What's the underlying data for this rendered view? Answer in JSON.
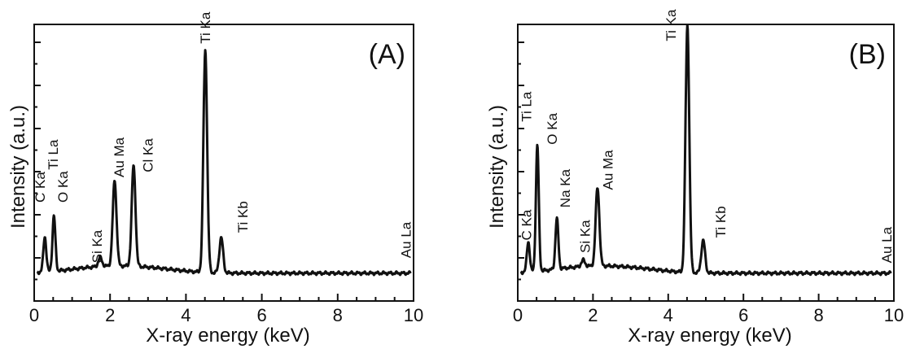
{
  "chart_data": [
    {
      "type": "line",
      "panel_label": "(A)",
      "xlabel": "X-ray energy (keV)",
      "ylabel": "Intensity (a.u.)",
      "xlim": [
        0,
        10
      ],
      "ylim": [
        0,
        1.0
      ],
      "y_tick_labels": false,
      "x_ticks": [
        "0",
        "2",
        "4",
        "6",
        "8",
        "10"
      ],
      "baseline": 0.02,
      "peaks": [
        {
          "label": "C Ka",
          "energy": 0.28,
          "height": 0.14
        },
        {
          "label": "O Ka",
          "energy": 0.52,
          "height": 0.22
        },
        {
          "label": "Ti La",
          "energy": 0.45,
          "height": 0.0
        },
        {
          "label": "Si Ka",
          "energy": 1.74,
          "height": 0.035
        },
        {
          "label": "Au Ma",
          "energy": 2.12,
          "height": 0.34
        },
        {
          "label": "Cl Ka",
          "energy": 2.62,
          "height": 0.4
        },
        {
          "label": "Ti Ka",
          "energy": 4.51,
          "height": 0.88
        },
        {
          "label": "Ti Kb",
          "energy": 4.93,
          "height": 0.14
        },
        {
          "label": "Au La",
          "energy": 9.71,
          "height": 0.0
        }
      ],
      "peak_labels": [
        {
          "text": "C Ka",
          "energy": 0.28,
          "y": 0.3
        },
        {
          "text": "Ti La",
          "energy": 0.62,
          "y": 0.43
        },
        {
          "text": "O Ka",
          "energy": 0.88,
          "y": 0.3
        },
        {
          "text": "Si Ka",
          "energy": 1.78,
          "y": 0.06
        },
        {
          "text": "Au Ma",
          "energy": 2.36,
          "y": 0.4
        },
        {
          "text": "Cl Ka",
          "energy": 3.12,
          "y": 0.42
        },
        {
          "text": "Ti Ka",
          "energy": 4.64,
          "y": 0.93
        },
        {
          "text": "Ti Kb",
          "energy": 5.62,
          "y": 0.18
        },
        {
          "text": "Au La",
          "energy": 9.92,
          "y": 0.08
        }
      ]
    },
    {
      "type": "line",
      "panel_label": "(B)",
      "xlabel": "X-ray energy (keV)",
      "ylabel": "Intensity (a.u.)",
      "xlim": [
        0,
        10
      ],
      "ylim": [
        0,
        1.0
      ],
      "y_tick_labels": false,
      "x_ticks": [
        "0",
        "2",
        "4",
        "6",
        "8",
        "10"
      ],
      "baseline": 0.02,
      "peaks": [
        {
          "label": "C Ka",
          "energy": 0.28,
          "height": 0.12
        },
        {
          "label": "O Ka",
          "energy": 0.52,
          "height": 0.5
        },
        {
          "label": "Ti La",
          "energy": 0.45,
          "height": 0.0
        },
        {
          "label": "Na Ka",
          "energy": 1.04,
          "height": 0.2
        },
        {
          "label": "Si Ka",
          "energy": 1.74,
          "height": 0.025
        },
        {
          "label": "Au Ma",
          "energy": 2.12,
          "height": 0.31
        },
        {
          "label": "Ti Ka",
          "energy": 4.51,
          "height": 0.98
        },
        {
          "label": "Ti Kb",
          "energy": 4.93,
          "height": 0.13
        },
        {
          "label": "Au La",
          "energy": 9.71,
          "height": 0.0
        }
      ],
      "peak_labels": [
        {
          "text": "C Ka",
          "energy": 0.36,
          "y": 0.15
        },
        {
          "text": "Ti La",
          "energy": 0.36,
          "y": 0.62
        },
        {
          "text": "O Ka",
          "energy": 1.04,
          "y": 0.53
        },
        {
          "text": "Na Ka",
          "energy": 1.38,
          "y": 0.28
        },
        {
          "text": "Si Ka",
          "energy": 1.92,
          "y": 0.1
        },
        {
          "text": "Au Ma",
          "energy": 2.52,
          "y": 0.35
        },
        {
          "text": "Ti Ka",
          "energy": 4.2,
          "y": 0.94
        },
        {
          "text": "Ti Kb",
          "energy": 5.52,
          "y": 0.16
        },
        {
          "text": "Au La",
          "energy": 9.94,
          "y": 0.06
        }
      ]
    }
  ]
}
